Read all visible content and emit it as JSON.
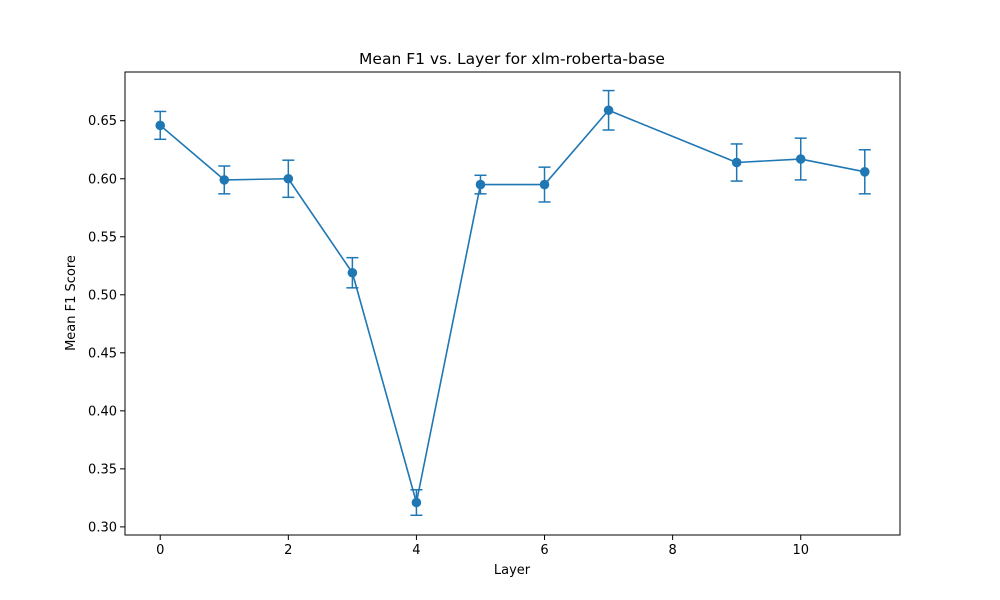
{
  "chart_data": {
    "type": "line",
    "title": "Mean F1 vs. Layer for xlm-roberta-base",
    "xlabel": "Layer",
    "ylabel": "Mean F1 Score",
    "xlim": [
      -0.55,
      11.55
    ],
    "ylim": [
      0.293,
      0.692
    ],
    "xticks": [
      0,
      2,
      4,
      6,
      8,
      10
    ],
    "yticks": [
      0.3,
      0.35,
      0.4,
      0.45,
      0.5,
      0.55,
      0.6,
      0.65
    ],
    "xtick_labels": [
      "0",
      "2",
      "4",
      "6",
      "8",
      "10"
    ],
    "ytick_labels": [
      "0.30",
      "0.35",
      "0.40",
      "0.45",
      "0.50",
      "0.55",
      "0.60",
      "0.65"
    ],
    "grid": false,
    "legend": null,
    "series": [
      {
        "color": "#1f77b4",
        "marker": "circle",
        "x": [
          0,
          1,
          2,
          3,
          4,
          5,
          6,
          7,
          9,
          10,
          11
        ],
        "y": [
          0.646,
          0.599,
          0.6,
          0.519,
          0.321,
          0.595,
          0.595,
          0.659,
          0.614,
          0.617,
          0.606
        ],
        "error": [
          0.012,
          0.012,
          0.016,
          0.013,
          0.011,
          0.008,
          0.015,
          0.017,
          0.016,
          0.018,
          0.019
        ]
      }
    ]
  }
}
